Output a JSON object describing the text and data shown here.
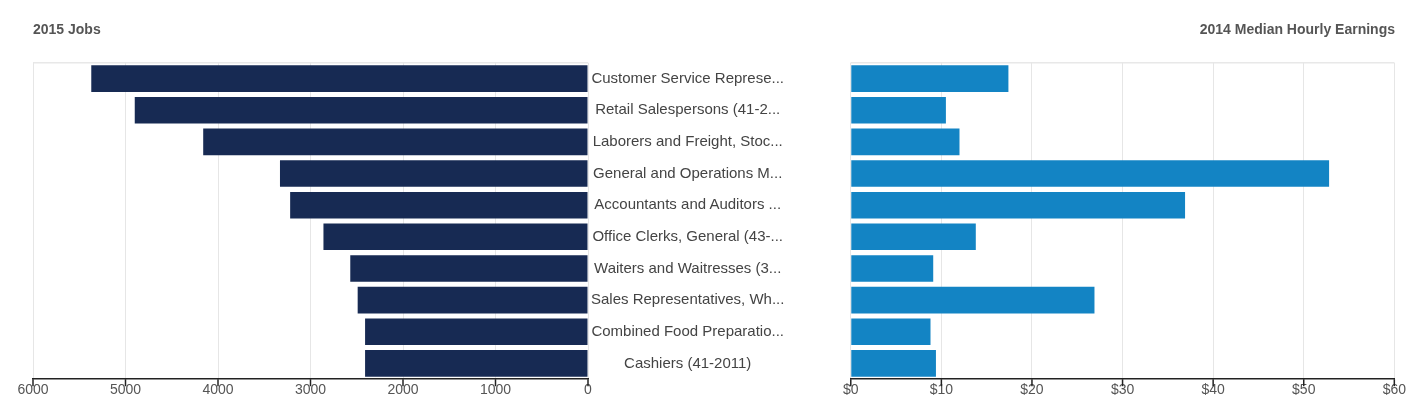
{
  "chart_data": [
    {
      "type": "bar",
      "orientation": "horizontal",
      "title": "2015 Jobs",
      "categories": [
        "Customer Service Represe...",
        "Retail Salespersons (41-2...",
        "Laborers and Freight, Stoc...",
        "General and Operations M...",
        "Accountants and Auditors ...",
        "Office Clerks, General (43-...",
        "Waiters and Waitresses (3...",
        "Sales Representatives, Wh...",
        "Combined Food Preparatio...",
        "Cashiers (41-2011)"
      ],
      "values": [
        5370,
        4900,
        4160,
        3330,
        3220,
        2860,
        2570,
        2490,
        2410,
        2410
      ],
      "color": "#172a53",
      "xlim": [
        6000,
        0
      ],
      "xticks": [
        6000,
        5000,
        4000,
        3000,
        2000,
        1000,
        0
      ],
      "grid": "x",
      "legend": false
    },
    {
      "type": "bar",
      "orientation": "horizontal",
      "title": "2014 Median Hourly Earnings",
      "categories": [
        null,
        null,
        null,
        null,
        null,
        null,
        null,
        null,
        null,
        null
      ],
      "values": [
        17.4,
        10.5,
        12.0,
        52.8,
        36.9,
        13.8,
        9.1,
        26.9,
        8.8,
        9.4
      ],
      "color": "#1384c4",
      "xlim": [
        0,
        60
      ],
      "xticks": [
        {
          "value": 0,
          "label": "$0"
        },
        {
          "value": 10,
          "label": "$10"
        },
        {
          "value": 20,
          "label": "$20"
        },
        {
          "value": 30,
          "label": "$30"
        },
        {
          "value": 40,
          "label": "$40"
        },
        {
          "value": 50,
          "label": "$50"
        },
        {
          "value": 60,
          "label": "$60"
        }
      ],
      "grid": "x",
      "legend": false,
      "tick_labels": "x"
    }
  ]
}
